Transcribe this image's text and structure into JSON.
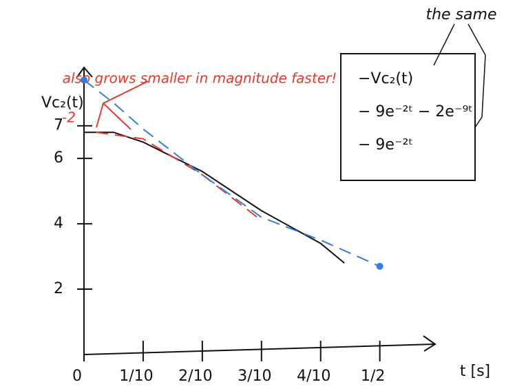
{
  "chart_data": {
    "type": "line",
    "y_label": "Vc₂(t)",
    "x_label": "t [s]",
    "xlim": [
      0,
      0.59
    ],
    "ylim": [
      0,
      8.7
    ],
    "xticks": [
      {
        "value": 0,
        "label": "0"
      },
      {
        "value": 0.1,
        "label": "1/10"
      },
      {
        "value": 0.2,
        "label": "2/10"
      },
      {
        "value": 0.3,
        "label": "3/10"
      },
      {
        "value": 0.4,
        "label": "4/10"
      },
      {
        "value": 0.5,
        "label": "1/2"
      }
    ],
    "yticks": [
      2,
      4,
      6,
      7
    ],
    "annotations": [
      "also grows smaller in magnitude faster!",
      "the same",
      "-2"
    ],
    "series": [
      {
        "name": "−Vc₂(t)",
        "color": "#111111",
        "dashed": false,
        "x": [
          0,
          0.05,
          0.1,
          0.2,
          0.3,
          0.4,
          0.44
        ],
        "values": [
          6.8,
          6.8,
          6.5,
          5.6,
          4.4,
          3.4,
          2.8
        ]
      },
      {
        "name": "− 9e⁻²ᵗ − 2e⁻⁹ᵗ",
        "color": "#e53a2c",
        "dashed": true,
        "x": [
          0.02,
          0.1,
          0.2,
          0.3
        ],
        "values": [
          6.8,
          6.6,
          5.5,
          4.1
        ]
      },
      {
        "name": "− 9e⁻²ᵗ",
        "color": "#2f7fe0",
        "dashed": true,
        "x": [
          0,
          0.05,
          0.1,
          0.2,
          0.3,
          0.4,
          0.5
        ],
        "values": [
          8.4,
          7.7,
          6.9,
          5.5,
          4.2,
          3.5,
          2.7
        ]
      }
    ]
  }
}
